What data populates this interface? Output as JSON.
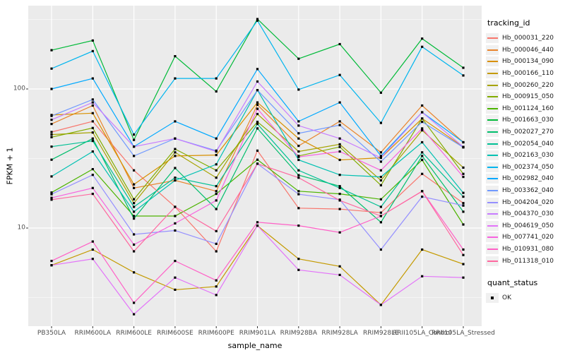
{
  "chart_data": {
    "type": "line",
    "title": "",
    "xlabel": "sample_name",
    "ylabel": "FPKM + 1",
    "yscale": "log10",
    "ylim": [
      2,
      380
    ],
    "yticks": [
      10,
      100
    ],
    "ytick_labels": [
      "10",
      "100"
    ],
    "yticks_minor": [
      3.162,
      31.62,
      316.2
    ],
    "grid": "on",
    "panel_bg": "#EBEBEB",
    "grid_color": "#FFFFFF",
    "point_marker": "square",
    "point_color": "#000000",
    "legend_position": "right",
    "legend_title": "tracking_id",
    "categories": [
      "PB350LA",
      "RRIM600LA",
      "RRIM600LE",
      "RRIM600SE",
      "RRIM600PE",
      "RRIM901LA",
      "RRIM928BA",
      "RRIM928LA",
      "RRIM928LE",
      "RRII105LA_Control",
      "RRII105LA_Stressed"
    ],
    "series": [
      {
        "name": "Hb_000031_220",
        "color": "#F8766D",
        "values": [
          49,
          58.5,
          26,
          14.2,
          6.8,
          36,
          13.9,
          13.7,
          12.9,
          24.5,
          15.1
        ]
      },
      {
        "name": "Hb_000046_440",
        "color": "#E9842C",
        "values": [
          56,
          76,
          19.4,
          22,
          18.4,
          77,
          39,
          58.5,
          35,
          76,
          41.4
        ]
      },
      {
        "name": "Hb_000134_090",
        "color": "#D89000",
        "values": [
          65,
          67,
          20.6,
          33,
          33.5,
          80,
          44,
          30.9,
          32,
          61.3,
          38.3
        ]
      },
      {
        "name": "Hb_000166_110",
        "color": "#C49A00",
        "values": [
          5.4,
          7,
          4.8,
          3.6,
          3.8,
          10.4,
          6,
          5.3,
          2.8,
          7,
          5.5
        ]
      },
      {
        "name": "Hb_000260_220",
        "color": "#A6A300",
        "values": [
          47,
          48.6,
          15.1,
          35,
          23,
          66,
          35.5,
          40,
          22,
          50.4,
          27.2
        ]
      },
      {
        "name": "Hb_000915_050",
        "color": "#82AC00",
        "values": [
          45,
          52.4,
          16.1,
          37,
          26,
          58,
          33,
          38.3,
          20.3,
          61.3,
          24.5
        ]
      },
      {
        "name": "Hb_001124_160",
        "color": "#4CB400",
        "values": [
          18,
          26.5,
          12.2,
          12.2,
          17.6,
          31,
          18.4,
          17.6,
          16.1,
          30.9,
          10.6
        ]
      },
      {
        "name": "Hb_001663_030",
        "color": "#00BA38",
        "values": [
          190,
          223,
          43,
          172,
          96,
          318,
          165,
          210,
          94,
          230,
          142
        ]
      },
      {
        "name": "Hb_002027_270",
        "color": "#00BE6C",
        "values": [
          31,
          44,
          11.7,
          27,
          13.7,
          52,
          24,
          20,
          11,
          33,
          13.1
        ]
      },
      {
        "name": "Hb_002054_040",
        "color": "#00C094",
        "values": [
          38.5,
          42.3,
          14.2,
          23,
          20,
          56,
          26,
          19.4,
          14.2,
          35,
          16.8
        ]
      },
      {
        "name": "Hb_002163_030",
        "color": "#00C1B2",
        "values": [
          23.5,
          35.5,
          13.1,
          22,
          28.7,
          98,
          30.9,
          24.1,
          23.3,
          41.4,
          17.9
        ]
      },
      {
        "name": "Hb_002374_050",
        "color": "#00B5EE",
        "values": [
          140,
          187,
          47,
          119,
          119,
          310,
          99,
          126,
          57,
          201,
          125
        ]
      },
      {
        "name": "Hb_002982_040",
        "color": "#00A9FF",
        "values": [
          100,
          119,
          38.5,
          58.5,
          44,
          139,
          58.5,
          80,
          33,
          68,
          41.4
        ]
      },
      {
        "name": "Hb_003362_040",
        "color": "#7099FF",
        "values": [
          64,
          84,
          33,
          44,
          36,
          98,
          48,
          55,
          30,
          58,
          38
        ]
      },
      {
        "name": "Hb_004204_020",
        "color": "#9590FF",
        "values": [
          17.5,
          24.1,
          9,
          9.6,
          7.7,
          29,
          17.5,
          16,
          7,
          16.8,
          14.5
        ]
      },
      {
        "name": "Hb_004370_030",
        "color": "#C77CFF",
        "values": [
          60,
          80,
          38.5,
          44,
          35.5,
          113,
          54.5,
          44,
          32,
          68,
          38.3
        ]
      },
      {
        "name": "Hb_004619_050",
        "color": "#E373F9",
        "values": [
          5.4,
          6,
          2.4,
          4.4,
          3.3,
          10.4,
          5,
          4.6,
          2.8,
          4.5,
          4.4
        ]
      },
      {
        "name": "Hb_007741_020",
        "color": "#F763DF",
        "values": [
          16.5,
          19.4,
          7.6,
          10.8,
          15.8,
          72,
          32.5,
          35.5,
          26,
          52,
          23.3
        ]
      },
      {
        "name": "Hb_010931_080",
        "color": "#FF61C7",
        "values": [
          5.8,
          8,
          2.9,
          5.8,
          4.2,
          11,
          10.4,
          9.3,
          12.2,
          18.4,
          7
        ]
      },
      {
        "name": "Hb_011318_010",
        "color": "#FF689F",
        "values": [
          16,
          17.6,
          6.8,
          14.2,
          9.5,
          29,
          23,
          15.8,
          12.2,
          18.4,
          6.4
        ]
      }
    ],
    "legend2": {
      "title": "quant_status",
      "items": [
        {
          "label": "OK",
          "marker": "square",
          "color": "#000000"
        }
      ]
    }
  }
}
